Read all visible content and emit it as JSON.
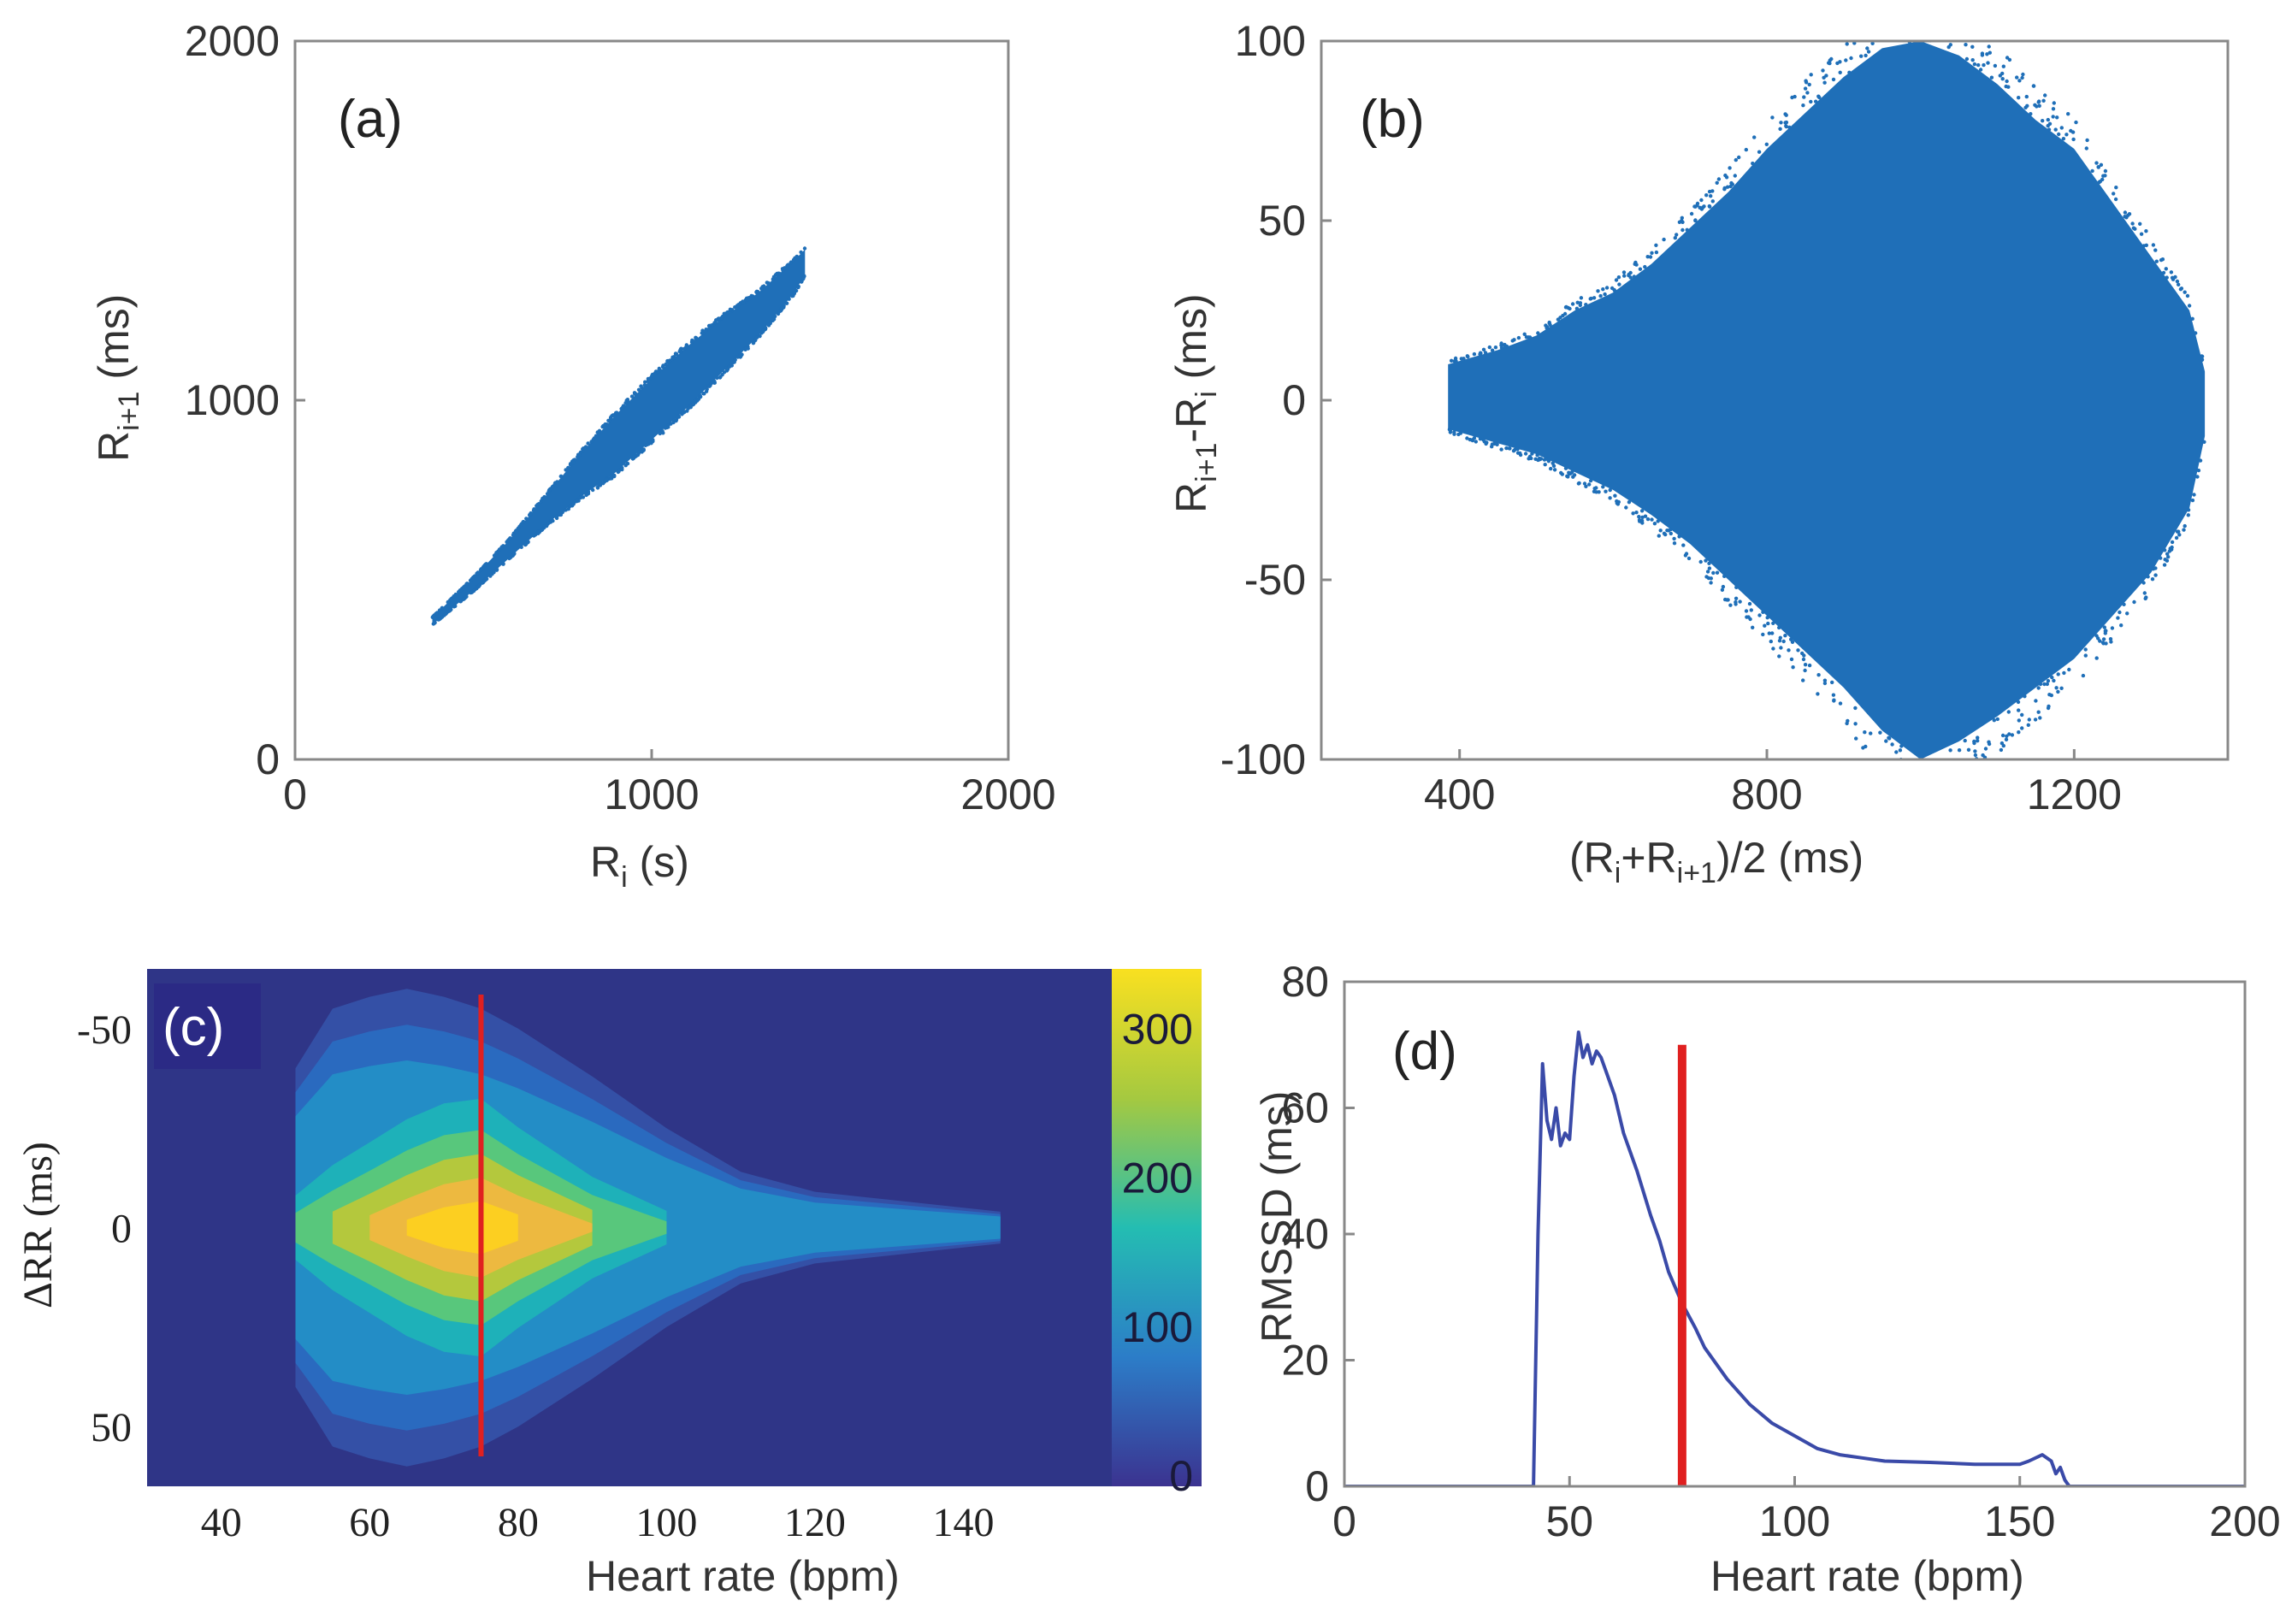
{
  "chart_data": [
    {
      "type": "scatter",
      "panel_label": "(a)",
      "xlabel": "R_i (s)",
      "ylabel": "R_i+1 (ms)",
      "xlim": [
        0,
        2000
      ],
      "ylim": [
        0,
        2000
      ],
      "x_ticks": [
        "0",
        "1000",
        "2000"
      ],
      "y_ticks": [
        "0",
        "1000",
        "2000"
      ],
      "series_color": "#1f6fb8",
      "envelope": {
        "x": [
          385,
          500,
          600,
          700,
          800,
          900,
          1000,
          1100,
          1200,
          1300,
          1400,
          1430
        ],
        "y_low": [
          375,
          470,
          560,
          650,
          730,
          800,
          890,
          980,
          1080,
          1180,
          1300,
          1350
        ],
        "y_high": [
          395,
          505,
          610,
          730,
          850,
          960,
          1060,
          1150,
          1230,
          1300,
          1390,
          1420
        ]
      }
    },
    {
      "type": "scatter",
      "panel_label": "(b)",
      "xlabel": "(R_i+R_i+1)/2 (ms)",
      "ylabel": "R_i+1-R_i (ms)",
      "xlim": [
        220,
        1400
      ],
      "ylim": [
        -100,
        100
      ],
      "x_ticks": [
        "400",
        "800",
        "1200"
      ],
      "y_ticks": [
        "100",
        "50",
        "0",
        "-50",
        "-100"
      ],
      "series_color": "#1f6fb8",
      "envelope": {
        "x": [
          385,
          450,
          500,
          550,
          600,
          650,
          700,
          750,
          800,
          850,
          900,
          950,
          1000,
          1050,
          1100,
          1150,
          1200,
          1250,
          1300,
          1350,
          1370
        ],
        "y_low": [
          -8,
          -12,
          -15,
          -20,
          -25,
          -32,
          -40,
          -50,
          -60,
          -70,
          -80,
          -92,
          -100,
          -95,
          -88,
          -80,
          -72,
          -60,
          -48,
          -30,
          -10
        ],
        "y_high": [
          10,
          14,
          18,
          25,
          30,
          38,
          48,
          58,
          70,
          80,
          90,
          98,
          100,
          96,
          88,
          78,
          70,
          55,
          40,
          25,
          8
        ]
      }
    },
    {
      "type": "heatmap",
      "panel_label": "(c)",
      "xlabel": "Heart rate (bpm)",
      "ylabel": "ΔRR (ms)",
      "xlim": [
        30,
        160
      ],
      "ylim": [
        65,
        -65
      ],
      "x_ticks": [
        "40",
        "60",
        "80",
        "100",
        "120",
        "140"
      ],
      "y_ticks": [
        "-50",
        "0",
        "50"
      ],
      "colorbar_ticks": [
        "300",
        "200",
        "100",
        "0"
      ],
      "colorbar_range": [
        0,
        330
      ],
      "peak": {
        "heart_rate": 74,
        "delta_rr": 0,
        "count": 300
      },
      "spread_profile": {
        "heart_rate": [
          50,
          55,
          60,
          65,
          70,
          75,
          80,
          90,
          100,
          110,
          120,
          130,
          140,
          145
        ],
        "delta_rr_halfwidth": [
          40,
          55,
          58,
          60,
          58,
          55,
          50,
          38,
          25,
          14,
          9,
          7,
          5,
          4
        ]
      },
      "marker_line": {
        "heart_rate": 75,
        "color": "#e02020"
      }
    },
    {
      "type": "line",
      "panel_label": "(d)",
      "xlabel": "Heart rate (bpm)",
      "ylabel": "RMSSD (ms)",
      "xlim": [
        0,
        200
      ],
      "ylim": [
        0,
        80
      ],
      "x_ticks": [
        "0",
        "50",
        "100",
        "150",
        "200"
      ],
      "y_ticks": [
        "0",
        "20",
        "40",
        "60",
        "80"
      ],
      "series": [
        {
          "color": "#3a4aa8",
          "x": [
            0,
            42,
            43,
            44,
            45,
            46,
            47,
            48,
            49,
            50,
            51,
            52,
            53,
            54,
            55,
            56,
            57,
            58,
            60,
            62,
            65,
            68,
            70,
            72,
            75,
            78,
            80,
            85,
            90,
            95,
            100,
            105,
            110,
            115,
            120,
            130,
            140,
            150,
            152,
            155,
            157,
            158,
            159,
            160,
            161,
            200
          ],
          "y": [
            0,
            0,
            40,
            67,
            58,
            55,
            60,
            54,
            56,
            55,
            65,
            72,
            68,
            70,
            67,
            69,
            68,
            66,
            62,
            56,
            50,
            43,
            39,
            34,
            29,
            25,
            22,
            17,
            13,
            10,
            8,
            6,
            5,
            4.5,
            4,
            3.8,
            3.5,
            3.5,
            4,
            5,
            4,
            2,
            3,
            1,
            0,
            0
          ]
        }
      ],
      "marker_line": {
        "heart_rate": 75,
        "rmssd_top": 70,
        "color": "#e02020"
      }
    }
  ]
}
